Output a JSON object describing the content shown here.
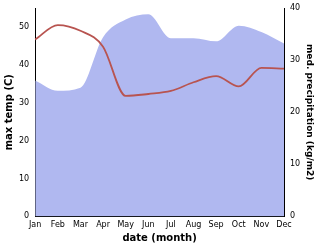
{
  "chart_data": {
    "type": "line",
    "x_label": "date (month)",
    "y_label": "max temp (C)",
    "y2_label": "med. precipitation (kg/m2)",
    "categories": [
      "Jan",
      "Feb",
      "Mar",
      "Apr",
      "May",
      "Jun",
      "Jul",
      "Aug",
      "Sep",
      "Oct",
      "Nov",
      "Dec"
    ],
    "series": [
      {
        "name": "max temp (C)",
        "type": "line",
        "color": "#b85450",
        "marker": "none",
        "line_style": "solid",
        "values": [
          46.7,
          50.5,
          49.0,
          44.8,
          31.8,
          32.3,
          33.1,
          35.4,
          37.0,
          34.3,
          39.2,
          39.0
        ]
      },
      {
        "name": "med. precipitation (kg/m2)",
        "type": "area",
        "axis": "y2",
        "color": "#b0b8f0",
        "marker": "none",
        "values": [
          26.1,
          24.1,
          24.7,
          34.4,
          37.8,
          38.8,
          34.2,
          34.2,
          33.6,
          36.6,
          35.4,
          33.2
        ]
      }
    ],
    "ylim": [
      0,
      55
    ],
    "yticks": [
      0,
      10,
      20,
      30,
      40,
      50
    ],
    "y2lim": [
      0,
      40
    ],
    "y2ticks": [
      0,
      10,
      20,
      30,
      40
    ],
    "grid": false
  }
}
